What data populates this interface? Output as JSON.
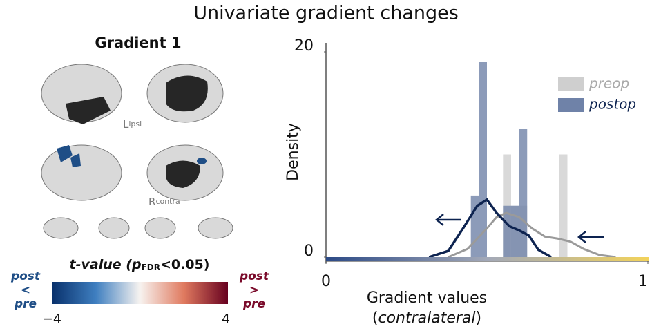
{
  "chart_data": {
    "type": "histogram",
    "title": "Univariate gradient changes",
    "ylabel": "Density",
    "xlabel": "Gradient values",
    "xlabel_note": [
      "(",
      "contralateral",
      ")"
    ],
    "xlim": [
      0,
      1
    ],
    "xticks": [
      0,
      1
    ],
    "ylim": [
      0,
      20
    ],
    "yticks": [
      0,
      20
    ],
    "bins": [
      0.45,
      0.475,
      0.5,
      0.525,
      0.55,
      0.575,
      0.6,
      0.625,
      0.65,
      0.675,
      0.7,
      0.725,
      0.75
    ],
    "series": [
      {
        "name": "preop",
        "color": "#cfcfcf",
        "curve_color": "#9a9a9a",
        "values": [
          0,
          0,
          0,
          0,
          10,
          5,
          5,
          0,
          0,
          0,
          0,
          10
        ],
        "curve_x": [
          0.38,
          0.44,
          0.5,
          0.53,
          0.56,
          0.6,
          0.64,
          0.68,
          0.72,
          0.76,
          0.8,
          0.85,
          0.9
        ],
        "curve": [
          0,
          0.8,
          2.8,
          3.9,
          4.3,
          3.9,
          2.8,
          2.0,
          1.8,
          1.5,
          0.8,
          0.2,
          0
        ]
      },
      {
        "name": "postop",
        "color": "#6f82a8",
        "curve_color": "#0d2350",
        "values": [
          6,
          19,
          0,
          0,
          5,
          5,
          12.5,
          0,
          0,
          0,
          0,
          0
        ],
        "curve_x": [
          0.32,
          0.38,
          0.43,
          0.47,
          0.5,
          0.53,
          0.57,
          0.6,
          0.63,
          0.66,
          0.7
        ],
        "curve": [
          0,
          0.6,
          3.0,
          5.0,
          5.6,
          4.3,
          3.0,
          2.6,
          2.1,
          0.7,
          0
        ]
      }
    ],
    "legend": "top-right"
  },
  "brain_panel": {
    "title": "Gradient 1",
    "left_label": [
      "L",
      "ipsi"
    ],
    "right_label": [
      "R",
      "contra"
    ],
    "colorbar": {
      "title": [
        "t-value (",
        "p",
        "FDR",
        "<0.05)"
      ],
      "low_label": [
        "post",
        "<",
        "pre"
      ],
      "high_label": [
        "post",
        ">",
        "pre"
      ],
      "ticks": [
        {
          "value": -4,
          "label": "−4"
        },
        4
      ]
    }
  }
}
